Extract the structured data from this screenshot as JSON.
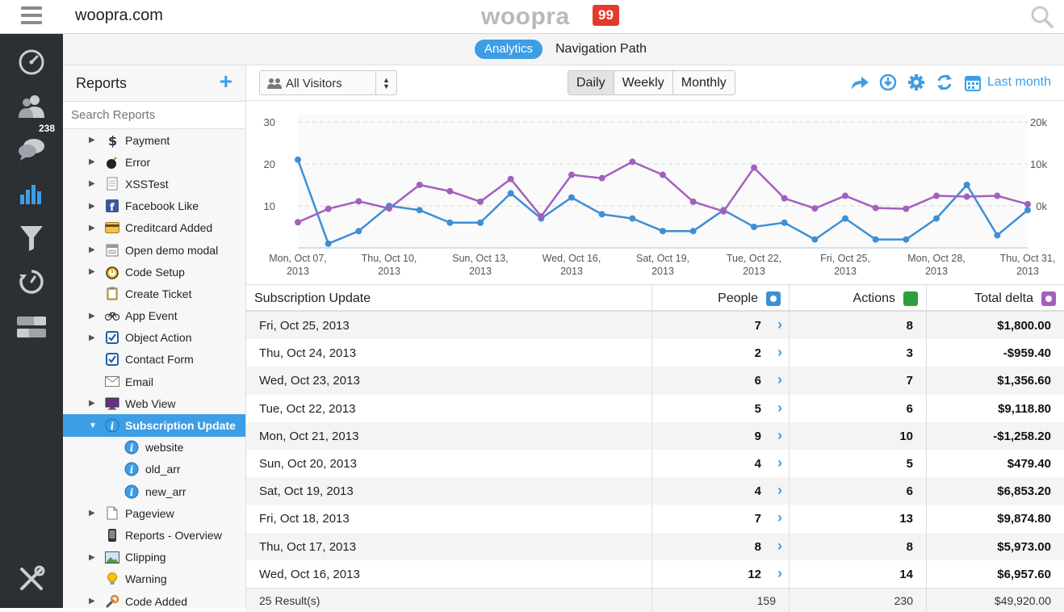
{
  "topbar": {
    "site": "woopra.com",
    "logo_text": "woopra",
    "logo_badge": "99"
  },
  "leftnav": {
    "people_badge": "238",
    "items": [
      "dashboard-icon",
      "people-icon",
      "chat-icon",
      "analytics-icon",
      "funnel-icon",
      "history-icon",
      "toggle-icon",
      "tools-icon"
    ]
  },
  "subnav": {
    "tabs": [
      {
        "label": "Analytics",
        "active": true
      },
      {
        "label": "Navigation Path",
        "active": false
      }
    ]
  },
  "reports": {
    "title": "Reports",
    "add_label": "+",
    "search_placeholder": "Search Reports",
    "items": [
      {
        "label": "Payment",
        "icon": "dollar-icon",
        "expandable": true
      },
      {
        "label": "Error",
        "icon": "bomb-icon",
        "expandable": true
      },
      {
        "label": "XSSTest",
        "icon": "document-icon",
        "expandable": true
      },
      {
        "label": "Facebook Like",
        "icon": "facebook-icon",
        "expandable": true
      },
      {
        "label": "Creditcard Added",
        "icon": "creditcard-icon",
        "expandable": true
      },
      {
        "label": "Open demo modal",
        "icon": "modal-icon",
        "expandable": true
      },
      {
        "label": "Code Setup",
        "icon": "alarm-icon",
        "expandable": true
      },
      {
        "label": "Create Ticket",
        "icon": "clipboard-icon",
        "expandable": false
      },
      {
        "label": "App Event",
        "icon": "bicycle-icon",
        "expandable": true
      },
      {
        "label": "Object Action",
        "icon": "checkbox-icon",
        "expandable": true
      },
      {
        "label": "Contact Form",
        "icon": "checkbox-icon",
        "expandable": false
      },
      {
        "label": "Email",
        "icon": "envelope-icon",
        "expandable": false
      },
      {
        "label": "Web View",
        "icon": "monitor-icon",
        "expandable": true
      },
      {
        "label": "Subscription Update",
        "icon": "info-icon",
        "expandable": true,
        "selected": true
      },
      {
        "label": "website",
        "icon": "info-icon",
        "child": true
      },
      {
        "label": "old_arr",
        "icon": "info-icon",
        "child": true
      },
      {
        "label": "new_arr",
        "icon": "info-icon",
        "child": true
      },
      {
        "label": "Pageview",
        "icon": "page-icon",
        "expandable": true
      },
      {
        "label": "Reports - Overview",
        "icon": "phone-icon",
        "expandable": false
      },
      {
        "label": "Clipping",
        "icon": "image-icon",
        "expandable": true
      },
      {
        "label": "Warning",
        "icon": "bulb-icon",
        "expandable": false
      },
      {
        "label": "Code Added",
        "icon": "wrench-icon",
        "expandable": true
      }
    ]
  },
  "toolbar": {
    "visitor_filter": "All Visitors",
    "periods": [
      {
        "label": "Daily",
        "active": true
      },
      {
        "label": "Weekly",
        "active": false
      },
      {
        "label": "Monthly",
        "active": false
      }
    ],
    "date_range": "Last month"
  },
  "chart_data": {
    "type": "line",
    "x": [
      "Mon, Oct 07, 2013",
      "Tue, Oct 08, 2013",
      "Wed, Oct 09, 2013",
      "Thu, Oct 10, 2013",
      "Fri, Oct 11, 2013",
      "Sat, Oct 12, 2013",
      "Sun, Oct 13, 2013",
      "Mon, Oct 14, 2013",
      "Tue, Oct 15, 2013",
      "Wed, Oct 16, 2013",
      "Thu, Oct 17, 2013",
      "Fri, Oct 18, 2013",
      "Sat, Oct 19, 2013",
      "Sun, Oct 20, 2013",
      "Mon, Oct 21, 2013",
      "Tue, Oct 22, 2013",
      "Wed, Oct 23, 2013",
      "Thu, Oct 24, 2013",
      "Fri, Oct 25, 2013",
      "Sat, Oct 26, 2013",
      "Sun, Oct 27, 2013",
      "Mon, Oct 28, 2013",
      "Tue, Oct 29, 2013",
      "Wed, Oct 30, 2013",
      "Thu, Oct 31, 2013"
    ],
    "tick_labels": [
      [
        "Mon, Oct 07,",
        "2013"
      ],
      [
        "Thu, Oct 10,",
        "2013"
      ],
      [
        "Sun, Oct 13,",
        "2013"
      ],
      [
        "Wed, Oct 16,",
        "2013"
      ],
      [
        "Sat, Oct 19,",
        "2013"
      ],
      [
        "Tue, Oct 22,",
        "2013"
      ],
      [
        "Fri, Oct 25,",
        "2013"
      ],
      [
        "Mon, Oct 28,",
        "2013"
      ],
      [
        "Thu, Oct 31,",
        "2013"
      ]
    ],
    "tick_indices": [
      0,
      3,
      6,
      9,
      12,
      15,
      18,
      21,
      24
    ],
    "left_axis": {
      "ticks": [
        "10",
        "20",
        "30"
      ],
      "values": [
        10,
        20,
        30
      ],
      "range": [
        0,
        30
      ]
    },
    "right_axis": {
      "ticks": [
        "0k",
        "10k",
        "20k"
      ],
      "values": [
        0,
        10000,
        20000
      ],
      "range": [
        -10000,
        20000
      ]
    },
    "series": [
      {
        "name": "People",
        "axis": "left",
        "color": "#3d8fd6",
        "values": [
          21,
          1,
          4,
          10,
          9,
          6,
          6,
          13,
          7,
          12,
          8,
          7,
          4,
          4,
          9,
          5,
          6,
          2,
          7,
          2,
          2,
          7,
          15,
          3,
          9
        ]
      },
      {
        "name": "Total delta",
        "axis": "right",
        "color": "#a35fc0",
        "values": [
          -3900,
          -700,
          1100,
          -600,
          5000,
          3500,
          1000,
          6400,
          -2500,
          7400,
          6600,
          10500,
          7400,
          1000,
          -1300,
          9100,
          1800,
          -600,
          2400,
          -500,
          -700,
          2400,
          2200,
          2400,
          400
        ]
      }
    ]
  },
  "table": {
    "title": "Subscription Update",
    "columns": [
      {
        "label": "People",
        "color": "#3d8fd6"
      },
      {
        "label": "Actions",
        "color": "#2e9e3e"
      },
      {
        "label": "Total delta",
        "color": "#a35fc0"
      }
    ],
    "rows": [
      {
        "date": "Fri, Oct 25, 2013",
        "people": "7",
        "actions": "8",
        "delta": "$1,800.00"
      },
      {
        "date": "Thu, Oct 24, 2013",
        "people": "2",
        "actions": "3",
        "delta": "-$959.40"
      },
      {
        "date": "Wed, Oct 23, 2013",
        "people": "6",
        "actions": "7",
        "delta": "$1,356.60"
      },
      {
        "date": "Tue, Oct 22, 2013",
        "people": "5",
        "actions": "6",
        "delta": "$9,118.80"
      },
      {
        "date": "Mon, Oct 21, 2013",
        "people": "9",
        "actions": "10",
        "delta": "-$1,258.20"
      },
      {
        "date": "Sun, Oct 20, 2013",
        "people": "4",
        "actions": "5",
        "delta": "$479.40"
      },
      {
        "date": "Sat, Oct 19, 2013",
        "people": "4",
        "actions": "6",
        "delta": "$6,853.20"
      },
      {
        "date": "Fri, Oct 18, 2013",
        "people": "7",
        "actions": "13",
        "delta": "$9,874.80"
      },
      {
        "date": "Thu, Oct 17, 2013",
        "people": "8",
        "actions": "8",
        "delta": "$5,973.00"
      },
      {
        "date": "Wed, Oct 16, 2013",
        "people": "12",
        "actions": "14",
        "delta": "$6,957.60"
      }
    ],
    "footer": {
      "results": "25 Result(s)",
      "people": "159",
      "actions": "230",
      "delta": "$49,920.00"
    }
  }
}
